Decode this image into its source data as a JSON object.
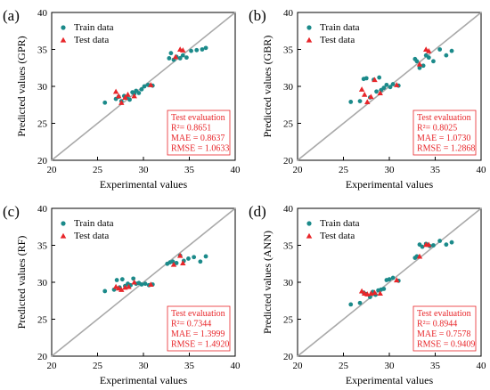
{
  "chart_data": [
    {
      "type": "scatter",
      "panel_label": "(a)",
      "xlabel": "Experimental values",
      "ylabel": "Predicted values (GPR)",
      "xlim": [
        20,
        40
      ],
      "ylim": [
        20,
        40
      ],
      "xticks": [
        20,
        25,
        30,
        35,
        40
      ],
      "yticks": [
        20,
        25,
        30,
        35,
        40
      ],
      "reference_line": "y = x",
      "legend": {
        "placement": "top-left",
        "entries": [
          "Train data",
          "Test data"
        ]
      },
      "evaluation": {
        "title": "Test evaluation",
        "r2": "R²= 0.8651",
        "mae": "MAE = 0.8637",
        "rmse": "RMSE = 1.0633"
      },
      "series": [
        {
          "name": "Train data",
          "marker": "circle",
          "color": "#1b8a8a",
          "x": [
            25.8,
            27.0,
            27.3,
            27.6,
            27.9,
            28.2,
            28.5,
            28.8,
            29.0,
            29.2,
            29.5,
            29.8,
            30.1,
            30.5,
            31.0,
            32.8,
            33.0,
            33.3,
            33.6,
            34.0,
            34.3,
            34.7,
            35.2,
            35.8,
            36.4,
            36.8
          ],
          "y": [
            27.8,
            28.3,
            28.6,
            28.0,
            28.7,
            28.5,
            28.2,
            29.2,
            29.0,
            29.4,
            29.1,
            29.6,
            30.0,
            30.2,
            30.1,
            33.8,
            34.5,
            33.6,
            34.0,
            33.8,
            34.2,
            33.9,
            34.8,
            34.9,
            35.0,
            35.2
          ]
        },
        {
          "name": "Test data",
          "marker": "triangle",
          "color": "#e8262a",
          "x": [
            27.0,
            27.3,
            27.6,
            28.0,
            28.3,
            29.0,
            30.8,
            33.5,
            34.0,
            34.3
          ],
          "y": [
            29.3,
            28.7,
            27.8,
            28.5,
            28.9,
            28.7,
            30.2,
            34.0,
            35.0,
            34.9
          ]
        }
      ]
    },
    {
      "type": "scatter",
      "panel_label": "(b)",
      "xlabel": "Experimental values",
      "ylabel": "Predicted values (GBR)",
      "xlim": [
        20,
        40
      ],
      "ylim": [
        20,
        40
      ],
      "xticks": [
        20,
        25,
        30,
        35,
        40
      ],
      "yticks": [
        20,
        25,
        30,
        35,
        40
      ],
      "reference_line": "y = x",
      "legend": {
        "placement": "top-left",
        "entries": [
          "Train data",
          "Test data"
        ]
      },
      "evaluation": {
        "title": "Test evaluation",
        "r2": "R²= 0.8025",
        "mae": "MAE = 1.0730",
        "rmse": "RMSE = 1.2868"
      },
      "series": [
        {
          "name": "Train data",
          "marker": "circle",
          "color": "#1b8a8a",
          "x": [
            25.8,
            26.8,
            27.2,
            27.5,
            27.9,
            28.3,
            28.6,
            28.9,
            29.1,
            29.4,
            29.7,
            30.1,
            30.4,
            31.0,
            32.8,
            33.0,
            33.3,
            33.7,
            34.0,
            34.3,
            34.8,
            35.5,
            36.2,
            36.8
          ],
          "y": [
            27.9,
            28.0,
            31.0,
            31.1,
            28.5,
            30.9,
            29.3,
            31.2,
            29.5,
            29.8,
            30.2,
            29.9,
            30.3,
            30.1,
            33.7,
            33.4,
            32.5,
            32.8,
            34.2,
            33.9,
            33.4,
            35.0,
            34.2,
            34.8
          ]
        },
        {
          "name": "Test data",
          "marker": "triangle",
          "color": "#e8262a",
          "x": [
            27.0,
            27.3,
            27.6,
            28.0,
            28.4,
            29.0,
            30.8,
            33.3,
            34.0,
            34.3
          ],
          "y": [
            29.6,
            28.9,
            27.9,
            28.6,
            30.9,
            29.1,
            30.2,
            33.0,
            35.0,
            34.8
          ]
        }
      ]
    },
    {
      "type": "scatter",
      "panel_label": "(c)",
      "xlabel": "Experimental values",
      "ylabel": "Predicted values (RF)",
      "xlim": [
        20,
        40
      ],
      "ylim": [
        20,
        40
      ],
      "xticks": [
        20,
        25,
        30,
        35,
        40
      ],
      "yticks": [
        20,
        25,
        30,
        35,
        40
      ],
      "reference_line": "y = x",
      "legend": {
        "placement": "top-left",
        "entries": [
          "Train data",
          "Test data"
        ]
      },
      "evaluation": {
        "title": "Test evaluation",
        "r2": "R²= 0.7344",
        "mae": "MAE = 1.3999",
        "rmse": "RMSE = 1.4920"
      },
      "series": [
        {
          "name": "Train data",
          "marker": "circle",
          "color": "#1b8a8a",
          "x": [
            25.8,
            26.8,
            27.1,
            27.4,
            27.7,
            28.0,
            28.3,
            28.6,
            28.9,
            29.2,
            29.5,
            29.8,
            30.2,
            30.6,
            31.0,
            32.6,
            32.9,
            33.2,
            33.6,
            34.0,
            34.4,
            34.9,
            35.5,
            36.2,
            36.8
          ],
          "y": [
            28.8,
            29.0,
            30.3,
            29.3,
            30.4,
            29.5,
            29.8,
            29.6,
            30.5,
            29.8,
            29.9,
            29.7,
            29.8,
            29.6,
            29.7,
            32.5,
            32.7,
            32.8,
            32.6,
            33.6,
            32.9,
            33.2,
            33.4,
            32.8,
            33.5
          ]
        },
        {
          "name": "Test data",
          "marker": "triangle",
          "color": "#e8262a",
          "x": [
            27.0,
            27.3,
            27.6,
            28.0,
            28.4,
            29.0,
            30.8,
            33.3,
            34.0,
            34.3
          ],
          "y": [
            29.4,
            29.2,
            29.0,
            29.3,
            29.4,
            30.0,
            29.7,
            32.4,
            33.6,
            32.6
          ]
        }
      ]
    },
    {
      "type": "scatter",
      "panel_label": "(d)",
      "xlabel": "Experimental values",
      "ylabel": "Predicted values (ANN)",
      "xlim": [
        20,
        40
      ],
      "ylim": [
        20,
        40
      ],
      "xticks": [
        20,
        25,
        30,
        35,
        40
      ],
      "yticks": [
        20,
        25,
        30,
        35,
        40
      ],
      "reference_line": "y = x",
      "legend": {
        "placement": "top-left",
        "entries": [
          "Train data",
          "Test data"
        ]
      },
      "evaluation": {
        "title": "Test evaluation",
        "r2": "R²= 0.8944",
        "mae": "MAE = 0.7578",
        "rmse": "RMSE = 0.9409"
      },
      "series": [
        {
          "name": "Train data",
          "marker": "circle",
          "color": "#1b8a8a",
          "x": [
            25.8,
            26.8,
            27.2,
            27.5,
            27.9,
            28.2,
            28.5,
            28.8,
            29.1,
            29.4,
            29.7,
            30.0,
            30.4,
            31.0,
            32.8,
            33.0,
            33.3,
            33.6,
            34.0,
            34.4,
            34.8,
            35.5,
            36.2,
            36.8
          ],
          "y": [
            27.0,
            27.2,
            28.6,
            28.4,
            28.0,
            28.7,
            28.3,
            28.9,
            29.0,
            29.1,
            30.3,
            30.4,
            30.6,
            30.2,
            33.3,
            33.5,
            35.1,
            34.8,
            35.2,
            34.9,
            35.0,
            35.6,
            35.1,
            35.4
          ]
        },
        {
          "name": "Test data",
          "marker": "triangle",
          "color": "#e8262a",
          "x": [
            27.0,
            27.3,
            27.6,
            28.0,
            28.4,
            29.0,
            30.8,
            33.3,
            34.0,
            34.3
          ],
          "y": [
            28.8,
            28.5,
            28.4,
            28.5,
            28.6,
            28.5,
            30.3,
            33.5,
            35.1,
            35.1
          ]
        }
      ]
    }
  ]
}
